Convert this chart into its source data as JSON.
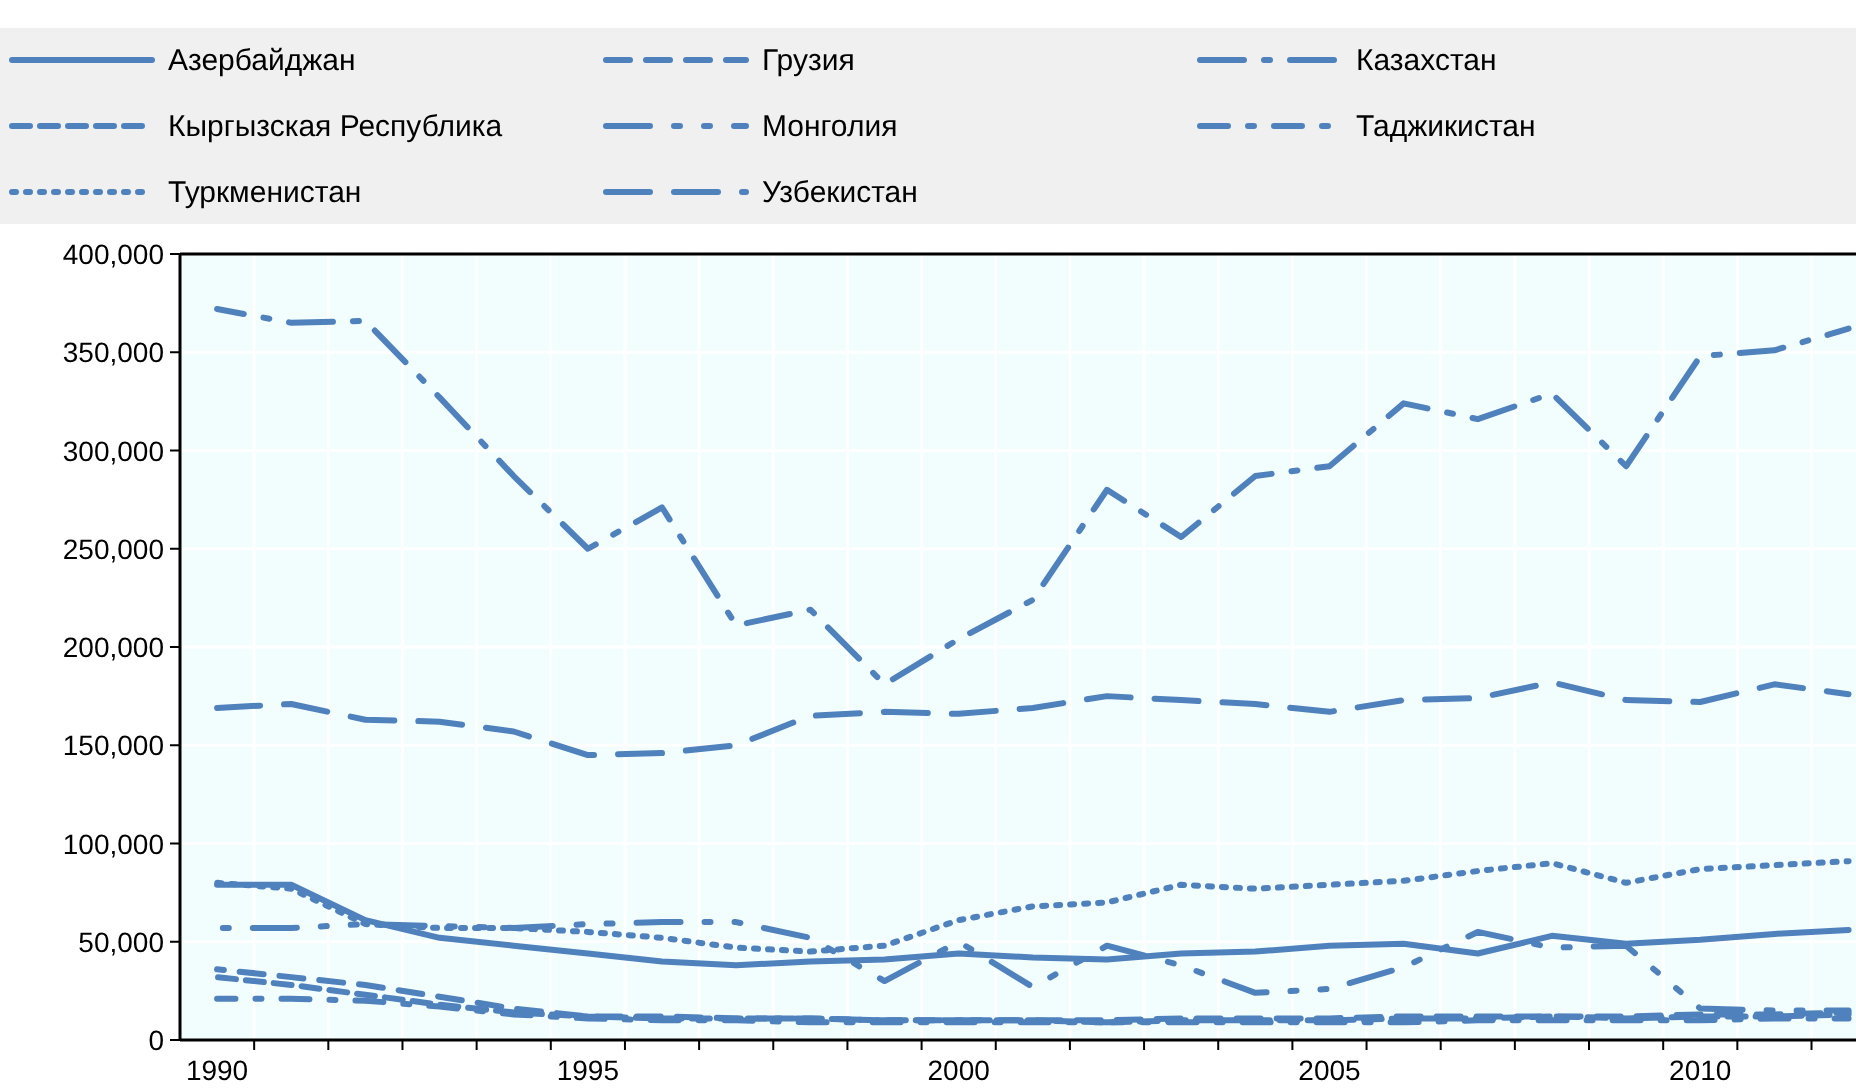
{
  "chart_data": {
    "type": "line",
    "x": [
      1990,
      1991,
      1992,
      1993,
      1994,
      1995,
      1996,
      1997,
      1998,
      1999,
      2000,
      2001,
      2002,
      2003,
      2004,
      2005,
      2006,
      2007,
      2008,
      2009,
      2010,
      2011,
      2012
    ],
    "xlim": [
      1989.5,
      2012.1
    ],
    "xticks": [
      1990,
      {
        "value": 1990.5,
        "label": null
      },
      {
        "value": 1991.5,
        "label": null
      },
      {
        "value": 1992.5,
        "label": null
      },
      {
        "value": 1993.5,
        "label": null
      },
      {
        "value": 1994.5,
        "label": null
      },
      1995,
      {
        "value": 1995.5,
        "label": null
      },
      {
        "value": 1996.5,
        "label": null
      },
      {
        "value": 1997.5,
        "label": null
      },
      {
        "value": 1998.5,
        "label": null
      },
      {
        "value": 1999.5,
        "label": null
      },
      2000,
      {
        "value": 2000.5,
        "label": null
      },
      {
        "value": 2001.5,
        "label": null
      },
      {
        "value": 2002.5,
        "label": null
      },
      {
        "value": 2003.5,
        "label": null
      },
      {
        "value": 2004.5,
        "label": null
      },
      2005,
      {
        "value": 2005.5,
        "label": null
      },
      {
        "value": 2006.5,
        "label": null
      },
      {
        "value": 2007.5,
        "label": null
      },
      {
        "value": 2008.5,
        "label": null
      },
      {
        "value": 2009.5,
        "label": null
      },
      2010,
      {
        "value": 2010.5,
        "label": null
      },
      {
        "value": 2011.5,
        "label": null
      }
    ],
    "ylim": [
      0,
      400000
    ],
    "yticks": [
      {
        "value": 0,
        "label": "0"
      },
      {
        "value": 50000,
        "label": "50,000"
      },
      {
        "value": 100000,
        "label": "100,000"
      },
      {
        "value": 150000,
        "label": "150,000"
      },
      {
        "value": 200000,
        "label": "200,000"
      },
      {
        "value": 250000,
        "label": "250,000"
      },
      {
        "value": 300000,
        "label": "300,000"
      },
      {
        "value": 350000,
        "label": "350,000"
      },
      {
        "value": 400000,
        "label": "400,000"
      }
    ],
    "grid": true,
    "legend": "top",
    "marker": "none",
    "series": [
      {
        "name": "Азербайджан",
        "color": "#4f81bd",
        "line_style": "solid",
        "values": [
          79000,
          79000,
          61000,
          52000,
          48000,
          44000,
          40000,
          38000,
          40000,
          41000,
          44000,
          42000,
          41000,
          44000,
          45000,
          48000,
          49000,
          44000,
          53000,
          49000,
          51000,
          54000,
          56000
        ]
      },
      {
        "name": "Грузия",
        "color": "#4f81bd",
        "line_style": "dashed",
        "values": [
          36000,
          32000,
          28000,
          22000,
          16000,
          12000,
          12000,
          11000,
          11000,
          10000,
          10000,
          10000,
          10000,
          11000,
          11000,
          11000,
          12000,
          12000,
          12000,
          12000,
          13000,
          13000,
          14000
        ]
      },
      {
        "name": "Казахстан",
        "color": "#4f81bd",
        "line_style": "longdashdot",
        "values": [
          372000,
          365000,
          366000,
          327000,
          287000,
          250000,
          271000,
          211000,
          219000,
          181000,
          204000,
          224000,
          280000,
          256000,
          287000,
          292000,
          324000,
          316000,
          329000,
          292000,
          348000,
          351000,
          362000
        ]
      },
      {
        "name": "Кыргызская Республика",
        "color": "#4f81bd",
        "line_style": "shortdashed",
        "values": [
          32000,
          28000,
          23000,
          18000,
          14000,
          12000,
          11000,
          11000,
          11000,
          10000,
          10000,
          10000,
          9000,
          10000,
          10000,
          10000,
          11000,
          11000,
          12000,
          11000,
          12000,
          12000,
          13000
        ]
      },
      {
        "name": "Монголия",
        "color": "#4f81bd",
        "line_style": "longdashdotdot",
        "values": [
          57000,
          57000,
          59000,
          58000,
          57000,
          59000,
          60000,
          60000,
          52000,
          30000,
          50000,
          27000,
          48000,
          38000,
          24000,
          26000,
          37000,
          55000,
          47000,
          48000,
          16000,
          15000,
          15000
        ]
      },
      {
        "name": "Таджикистан",
        "color": "#4f81bd",
        "line_style": "dashdot",
        "values": [
          21000,
          21000,
          20000,
          17000,
          13000,
          11000,
          10000,
          10000,
          9000,
          9000,
          9000,
          9000,
          9000,
          9000,
          9000,
          9000,
          9000,
          10000,
          10000,
          10000,
          10000,
          11000,
          11000
        ]
      },
      {
        "name": "Туркменистан",
        "color": "#4f81bd",
        "line_style": "dotted",
        "values": [
          80000,
          77000,
          59000,
          57000,
          57000,
          55000,
          52000,
          47000,
          45000,
          48000,
          61000,
          68000,
          70000,
          79000,
          77000,
          79000,
          81000,
          86000,
          90000,
          80000,
          87000,
          89000,
          91000
        ]
      },
      {
        "name": "Узбекистан",
        "color": "#4f81bd",
        "line_style": "longdashed",
        "values": [
          169000,
          171000,
          163000,
          162000,
          157000,
          145000,
          146000,
          150000,
          165000,
          167000,
          166000,
          169000,
          175000,
          173000,
          171000,
          167000,
          173000,
          174000,
          182000,
          173000,
          172000,
          181000,
          176000
        ]
      }
    ]
  }
}
